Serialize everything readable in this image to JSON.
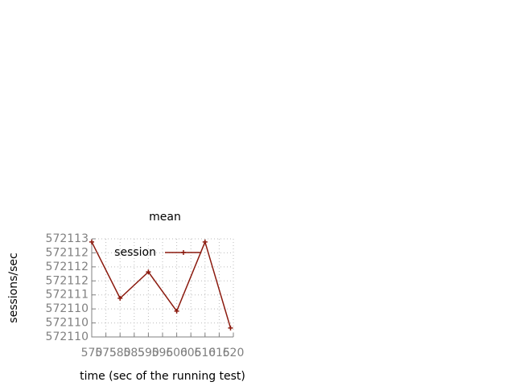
{
  "chart_data": {
    "type": "line",
    "title": "mean",
    "x_label": "time (sec of the running test)",
    "y_label": "sessions/sec",
    "x": [
      570,
      580,
      590,
      600,
      610,
      619
    ],
    "series": [
      {
        "name": "session",
        "color": "#8b1a0e",
        "values": [
          572112.89,
          572110.88,
          572111.82,
          572110.42,
          572112.89,
          572109.82
        ]
      }
    ],
    "xlim": [
      570,
      620
    ],
    "xticks": [
      570,
      575,
      580,
      585,
      590,
      595,
      600,
      605,
      610,
      615,
      620
    ],
    "ylim": [
      572109.5,
      572113
    ],
    "yticks": [
      {
        "value": 572109.5,
        "label": "572110"
      },
      {
        "value": 572110,
        "label": "572110"
      },
      {
        "value": 572110.5,
        "label": "572110"
      },
      {
        "value": 572111,
        "label": "572111"
      },
      {
        "value": 572111.5,
        "label": "572112"
      },
      {
        "value": 572112,
        "label": "572112"
      },
      {
        "value": 572112.5,
        "label": "572112"
      },
      {
        "value": 572113,
        "label": "572113"
      }
    ],
    "grid": true,
    "legend": "top-left"
  }
}
